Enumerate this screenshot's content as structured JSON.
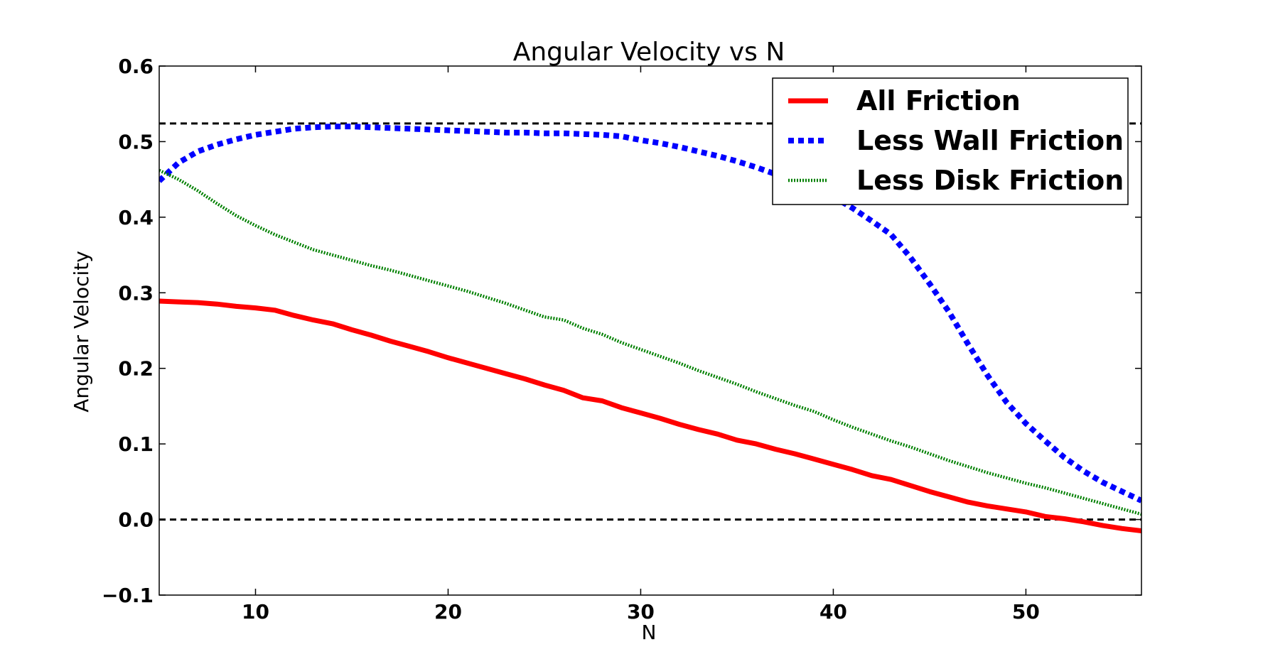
{
  "chart_data": {
    "type": "line",
    "title": "Angular Velocity vs N",
    "xlabel": "N",
    "ylabel": "Angular Velocity",
    "xlim": [
      5,
      56
    ],
    "ylim": [
      -0.1,
      0.6
    ],
    "xticks": [
      10,
      20,
      30,
      40,
      50
    ],
    "yticks": [
      -0.1,
      0.0,
      0.1,
      0.2,
      0.3,
      0.4,
      0.5,
      0.6
    ],
    "xtick_labels": [
      "10",
      "20",
      "30",
      "40",
      "50"
    ],
    "ytick_labels": [
      "−0.1",
      "0.0",
      "0.1",
      "0.2",
      "0.3",
      "0.4",
      "0.5",
      "0.6"
    ],
    "legend_position": "top-right",
    "grid": false,
    "reference_lines": [
      {
        "y": 0.524,
        "color": "#000000",
        "style": "dashed"
      },
      {
        "y": 0.0,
        "color": "#000000",
        "style": "dashed"
      }
    ],
    "x": [
      5,
      6,
      7,
      8,
      9,
      10,
      11,
      12,
      13,
      14,
      15,
      16,
      17,
      18,
      19,
      20,
      21,
      22,
      23,
      24,
      25,
      26,
      27,
      28,
      29,
      30,
      31,
      32,
      33,
      34,
      35,
      36,
      37,
      38,
      39,
      40,
      41,
      42,
      43,
      44,
      45,
      46,
      47,
      48,
      49,
      50,
      51,
      52,
      53,
      54,
      55,
      56
    ],
    "series": [
      {
        "name": "All Friction",
        "color": "#ff0000",
        "style": "solid",
        "values": [
          0.289,
          0.288,
          0.287,
          0.285,
          0.282,
          0.28,
          0.277,
          0.27,
          0.264,
          0.259,
          0.251,
          0.244,
          0.236,
          0.229,
          0.222,
          0.214,
          0.207,
          0.2,
          0.193,
          0.186,
          0.178,
          0.171,
          0.161,
          0.157,
          0.148,
          0.141,
          0.134,
          0.126,
          0.119,
          0.113,
          0.105,
          0.1,
          0.093,
          0.087,
          0.08,
          0.073,
          0.066,
          0.058,
          0.053,
          0.045,
          0.037,
          0.03,
          0.023,
          0.018,
          0.014,
          0.01,
          0.004,
          0.001,
          -0.003,
          -0.008,
          -0.012,
          -0.015
        ]
      },
      {
        "name": "Less Wall Friction",
        "color": "#0000ff",
        "style": "dotted",
        "values": [
          0.448,
          0.472,
          0.487,
          0.496,
          0.503,
          0.509,
          0.513,
          0.517,
          0.519,
          0.52,
          0.52,
          0.519,
          0.518,
          0.517,
          0.516,
          0.515,
          0.514,
          0.513,
          0.512,
          0.512,
          0.511,
          0.511,
          0.51,
          0.509,
          0.507,
          0.502,
          0.498,
          0.493,
          0.487,
          0.481,
          0.474,
          0.466,
          0.457,
          0.447,
          0.437,
          0.427,
          0.412,
          0.395,
          0.377,
          0.347,
          0.312,
          0.275,
          0.232,
          0.191,
          0.155,
          0.127,
          0.104,
          0.082,
          0.064,
          0.049,
          0.037,
          0.025
        ]
      },
      {
        "name": "Less Disk Friction",
        "color": "#008000",
        "style": "fine-dotted",
        "values": [
          0.462,
          0.45,
          0.435,
          0.418,
          0.402,
          0.389,
          0.377,
          0.367,
          0.357,
          0.35,
          0.343,
          0.336,
          0.33,
          0.323,
          0.316,
          0.309,
          0.302,
          0.294,
          0.286,
          0.277,
          0.268,
          0.264,
          0.253,
          0.245,
          0.234,
          0.225,
          0.216,
          0.207,
          0.197,
          0.188,
          0.179,
          0.169,
          0.16,
          0.151,
          0.143,
          0.132,
          0.122,
          0.113,
          0.104,
          0.096,
          0.087,
          0.078,
          0.07,
          0.062,
          0.055,
          0.048,
          0.042,
          0.035,
          0.028,
          0.021,
          0.014,
          0.007
        ]
      }
    ]
  }
}
